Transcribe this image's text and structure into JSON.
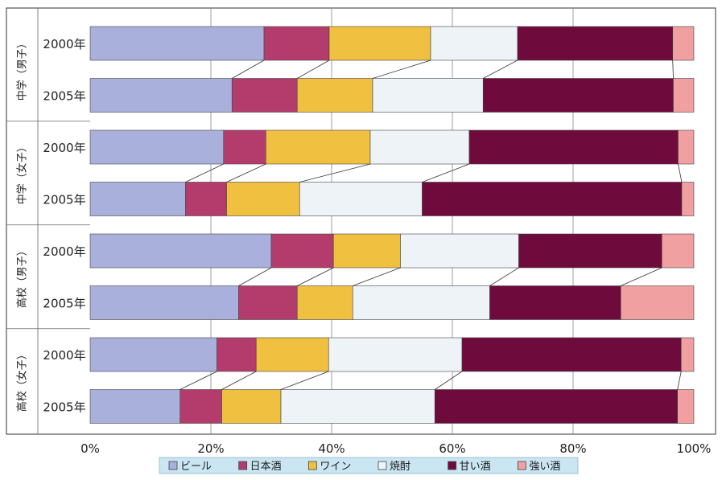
{
  "chart_data": {
    "type": "bar",
    "orientation": "horizontal",
    "stacked": "percent",
    "xlim": [
      0,
      100
    ],
    "x_ticks": [
      "0%",
      "20%",
      "40%",
      "60%",
      "80%",
      "100%"
    ],
    "groups": [
      {
        "label": "中学（男子）",
        "bars": [
          0,
          1
        ]
      },
      {
        "label": "中学（女子）",
        "bars": [
          2,
          3
        ]
      },
      {
        "label": "高校（男子）",
        "bars": [
          4,
          5
        ]
      },
      {
        "label": "高校（女子）",
        "bars": [
          6,
          7
        ]
      }
    ],
    "categories": [
      "2000年",
      "2005年",
      "2000年",
      "2005年",
      "2000年",
      "2005年",
      "2000年",
      "2005年"
    ],
    "series": [
      {
        "name": "ビール",
        "color": "#aab0dc",
        "values": [
          28.8,
          23.5,
          22.1,
          15.8,
          30.0,
          24.6,
          21.0,
          14.9
        ]
      },
      {
        "name": "日本酒",
        "color": "#b33c6c",
        "values": [
          10.8,
          10.8,
          7.0,
          6.8,
          10.3,
          9.7,
          6.5,
          6.9
        ]
      },
      {
        "name": "ワイン",
        "color": "#f0c040",
        "values": [
          16.8,
          12.5,
          17.3,
          12.1,
          11.1,
          9.2,
          12.0,
          9.8
        ]
      },
      {
        "name": "焼酎",
        "color": "#eef3f8",
        "values": [
          14.4,
          18.3,
          16.4,
          20.3,
          19.6,
          22.7,
          22.1,
          25.5
        ]
      },
      {
        "name": "甘い酒",
        "color": "#6e0b3c",
        "values": [
          25.7,
          31.5,
          34.6,
          43.0,
          23.7,
          21.7,
          36.3,
          40.2
        ]
      },
      {
        "name": "強い酒",
        "color": "#f0a0a0",
        "values": [
          3.5,
          3.4,
          2.6,
          2.0,
          5.3,
          12.1,
          2.1,
          2.7
        ]
      }
    ],
    "legend": {
      "position": "bottom"
    },
    "grid": {
      "x": true,
      "y": false
    },
    "bar_connectors": true
  }
}
